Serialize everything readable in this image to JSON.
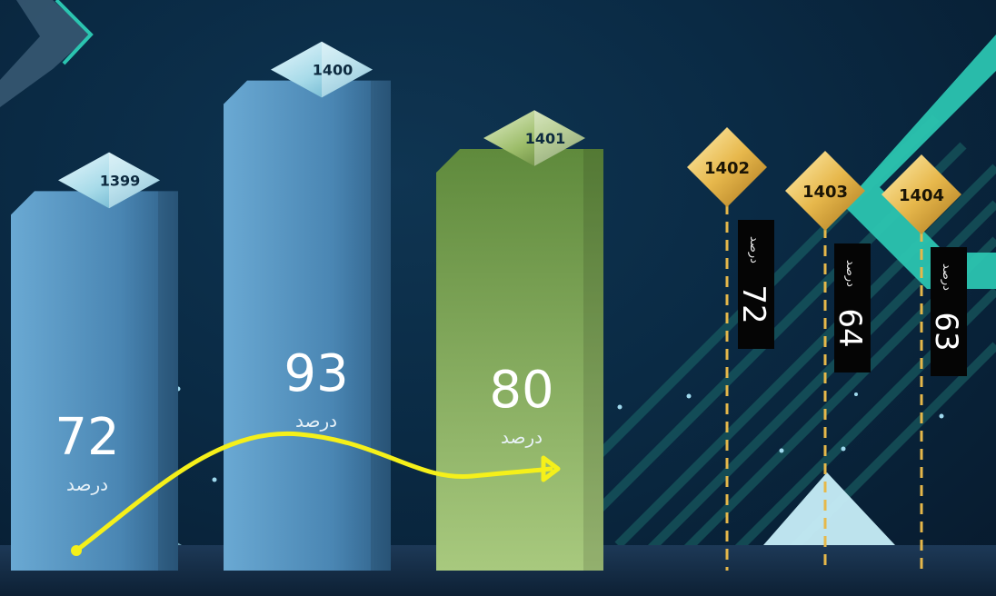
{
  "chart_data": {
    "type": "bar",
    "categories": [
      "1399",
      "1400",
      "1401",
      "1402",
      "1403",
      "1404"
    ],
    "values": [
      72,
      93,
      80,
      72,
      64,
      63
    ],
    "unit": "درصد",
    "colors": {
      "blue_bar": "#4f8db8",
      "green_bar": "#7fa35a",
      "gold_marker": "#e6b84a",
      "arrow": "#f5f01a",
      "accent_teal": "#2bc4b0"
    }
  }
}
